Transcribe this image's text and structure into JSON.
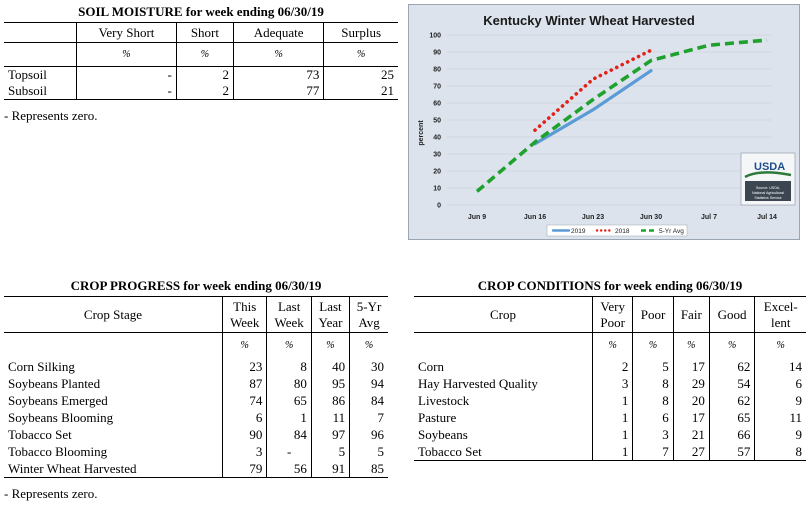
{
  "soil_moisture": {
    "title": "SOIL MOISTURE for week ending 06/30/19",
    "columns": [
      "Very Short",
      "Short",
      "Adequate",
      "Surplus"
    ],
    "unit": "%",
    "rows": [
      {
        "label": "Topsoil",
        "values": [
          "-",
          "2",
          "73",
          "25"
        ]
      },
      {
        "label": "Subsoil",
        "values": [
          "-",
          "2",
          "77",
          "21"
        ]
      }
    ],
    "note": "- Represents zero."
  },
  "chart_data": {
    "type": "line",
    "title": "Kentucky Winter Wheat Harvested",
    "ylabel": "percent",
    "ylim": [
      0,
      100
    ],
    "yticks": [
      0,
      10,
      20,
      30,
      40,
      50,
      60,
      70,
      80,
      90,
      100
    ],
    "x_categories": [
      "Jun 9",
      "Jun 16",
      "Jun 23",
      "Jun 30",
      "Jul 7",
      "Jul 14"
    ],
    "series": [
      {
        "name": "2019",
        "color": "#5b9bd5",
        "style": "solid",
        "values": [
          null,
          36,
          56,
          79,
          null,
          null
        ]
      },
      {
        "name": "2018",
        "color": "#e32119",
        "style": "dotted",
        "values": [
          null,
          44,
          74,
          91,
          null,
          null
        ]
      },
      {
        "name": "5-Yr Avg",
        "color": "#1fa12e",
        "style": "dashed",
        "values": [
          8,
          37,
          62,
          85,
          94,
          97
        ]
      }
    ],
    "logo": {
      "name": "USDA",
      "caption": "Source: USDA, National Agricultural Statistics Service"
    }
  },
  "crop_progress": {
    "title": "CROP PROGRESS for week ending 06/30/19",
    "header": {
      "stage": "Crop Stage",
      "cols": [
        [
          "This",
          "Week"
        ],
        [
          "Last",
          "Week"
        ],
        [
          "Last",
          "Year"
        ],
        [
          "5-Yr",
          "Avg"
        ]
      ]
    },
    "unit": "%",
    "rows": [
      {
        "label": "Corn Silking",
        "values": [
          "23",
          "8",
          "40",
          "30"
        ]
      },
      {
        "label": "Soybeans Planted",
        "values": [
          "87",
          "80",
          "95",
          "94"
        ]
      },
      {
        "label": "Soybeans Emerged",
        "values": [
          "74",
          "65",
          "86",
          "84"
        ]
      },
      {
        "label": "Soybeans Blooming",
        "values": [
          "6",
          "1",
          "11",
          "7"
        ]
      },
      {
        "label": "Tobacco Set",
        "values": [
          "90",
          "84",
          "97",
          "96"
        ]
      },
      {
        "label": "Tobacco Blooming",
        "values": [
          "3",
          "-",
          "5",
          "5"
        ]
      },
      {
        "label": "Winter Wheat Harvested",
        "values": [
          "79",
          "56",
          "91",
          "85"
        ]
      }
    ],
    "note": "- Represents zero."
  },
  "crop_conditions": {
    "title": "CROP CONDITIONS for week ending 06/30/19",
    "header": {
      "crop": "Crop",
      "cols": [
        [
          "Very",
          "Poor"
        ],
        [
          "Poor"
        ],
        [
          "Fair"
        ],
        [
          "Good"
        ],
        [
          "Excel-",
          "lent"
        ]
      ]
    },
    "unit": "%",
    "rows": [
      {
        "label": "Corn",
        "values": [
          "2",
          "5",
          "17",
          "62",
          "14"
        ]
      },
      {
        "label": "Hay Harvested Quality",
        "values": [
          "3",
          "8",
          "29",
          "54",
          "6"
        ]
      },
      {
        "label": "Livestock",
        "values": [
          "1",
          "8",
          "20",
          "62",
          "9"
        ]
      },
      {
        "label": "Pasture",
        "values": [
          "1",
          "6",
          "17",
          "65",
          "11"
        ]
      },
      {
        "label": "Soybeans",
        "values": [
          "1",
          "3",
          "21",
          "66",
          "9"
        ]
      },
      {
        "label": "Tobacco Set",
        "values": [
          "1",
          "7",
          "27",
          "57",
          "8"
        ]
      }
    ]
  }
}
